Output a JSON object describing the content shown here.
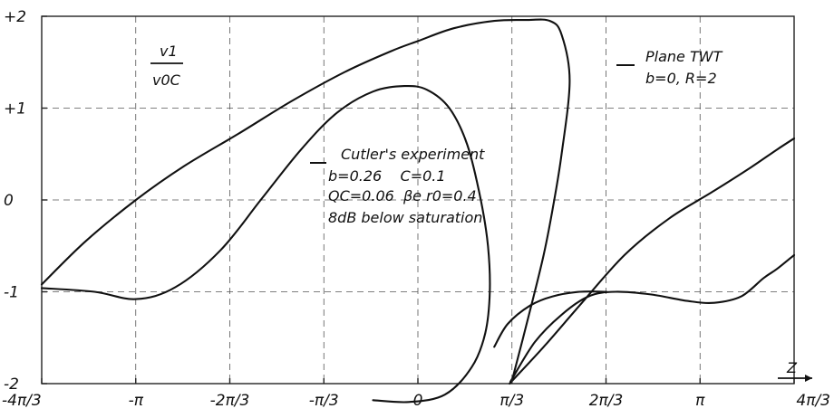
{
  "chart_data": {
    "type": "line",
    "title": "",
    "xlabel": "Z",
    "ylabel_numerator": "v1",
    "ylabel_denominator": "v0C",
    "xlim": [
      -4.18879,
      4.18879
    ],
    "ylim": [
      -2,
      2
    ],
    "x_ticks": [
      {
        "value": -4.18879,
        "label": "-4π/3"
      },
      {
        "value": -3.14159,
        "label": "-π"
      },
      {
        "value": -2.0944,
        "label": "-2π/3"
      },
      {
        "value": -1.0472,
        "label": "-π/3"
      },
      {
        "value": 0,
        "label": "0"
      },
      {
        "value": 1.0472,
        "label": "π/3"
      },
      {
        "value": 2.0944,
        "label": "2π/3"
      },
      {
        "value": 3.14159,
        "label": "π"
      },
      {
        "value": 4.18879,
        "label": "4π/3"
      }
    ],
    "y_ticks": [
      {
        "value": 2,
        "label": "+2"
      },
      {
        "value": 1,
        "label": "+1"
      },
      {
        "value": 0,
        "label": "0"
      },
      {
        "value": -1,
        "label": "-1"
      },
      {
        "value": -2,
        "label": "-2"
      }
    ],
    "grid": true,
    "annotations": {
      "plane_twt": [
        "Plane TWT",
        "b=0, R=2"
      ],
      "cutler": [
        "Cutler's experiment",
        "b=0.26    C=0.1",
        "QC=0.06  βe r0=0.4",
        "8dB below saturation"
      ]
    },
    "series": [
      {
        "x": [
          -4.189,
          -3.7,
          -3.14,
          -2.6,
          -2.0,
          -1.4,
          -0.8,
          -0.3,
          0.0,
          0.4,
          0.85,
          1.2,
          1.47,
          1.6,
          1.69,
          1.6,
          1.5,
          1.4,
          1.25,
          1.05
        ],
        "y": [
          -0.92,
          -0.45,
          0.0,
          0.37,
          0.72,
          1.08,
          1.4,
          1.62,
          1.73,
          1.87,
          1.95,
          1.96,
          1.95,
          1.8,
          1.3,
          0.5,
          -0.1,
          -0.6,
          -1.2,
          -1.96
        ]
      },
      {
        "x": [
          -4.189,
          -3.6,
          -3.14,
          -2.7,
          -2.2,
          -1.75,
          -1.3,
          -0.9,
          -0.5,
          -0.15,
          0.1,
          0.35,
          0.55,
          0.7,
          0.78,
          0.8,
          0.75,
          0.6,
          0.3,
          -0.1,
          -0.5
        ],
        "y": [
          -0.96,
          -1.0,
          -1.08,
          -0.95,
          -0.55,
          0.0,
          0.55,
          0.95,
          1.18,
          1.24,
          1.2,
          1.0,
          0.6,
          0.0,
          -0.5,
          -1.0,
          -1.45,
          -1.82,
          -2.12,
          -2.2,
          -2.18
        ]
      },
      {
        "x": [
          1.02,
          1.4,
          1.8,
          2.3,
          2.8,
          3.3,
          3.7,
          4.0,
          4.189
        ],
        "y": [
          -2.0,
          -1.6,
          -1.15,
          -0.6,
          -0.2,
          0.1,
          0.35,
          0.55,
          0.67
        ]
      },
      {
        "x": [
          1.03,
          1.3,
          1.6,
          1.9,
          2.2,
          2.6,
          3.0,
          3.3,
          3.6,
          3.85,
          4.0,
          4.189
        ],
        "y": [
          -1.98,
          -1.55,
          -1.25,
          -1.05,
          -1.0,
          -1.03,
          -1.1,
          -1.12,
          -1.05,
          -0.85,
          -0.75,
          -0.6
        ]
      },
      {
        "x": [
          0.85,
          1.0,
          1.25,
          1.5,
          1.8,
          2.1
        ],
        "y": [
          -1.6,
          -1.35,
          -1.15,
          -1.05,
          -1.0,
          -1.0
        ]
      }
    ]
  }
}
